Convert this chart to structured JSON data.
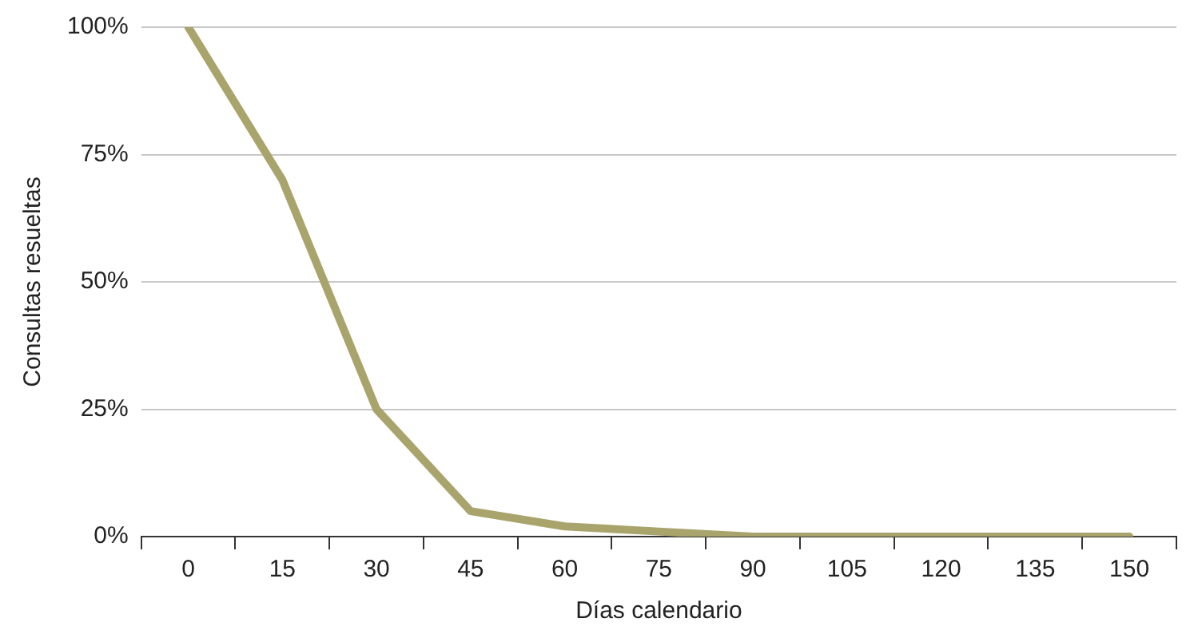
{
  "chart_data": {
    "type": "line",
    "xlabel": "Días calendario",
    "ylabel": "Consultas resueltas",
    "categories": [
      "0",
      "15",
      "30",
      "45",
      "60",
      "75",
      "90",
      "105",
      "120",
      "135",
      "150"
    ],
    "series": [
      {
        "color": "#a9a46c",
        "values": [
          100,
          70,
          25,
          5,
          2,
          1,
          0,
          0,
          0,
          0,
          0
        ]
      }
    ],
    "ylim": [
      0,
      100
    ],
    "yticks": [
      {
        "value": 0,
        "label": "0%"
      },
      {
        "value": 25,
        "label": "25%"
      },
      {
        "value": 50,
        "label": "50%"
      },
      {
        "value": 75,
        "label": "75%"
      },
      {
        "value": 100,
        "label": "100%"
      }
    ],
    "grid": "y",
    "legend": false,
    "marker": "none",
    "line_style": "solid"
  }
}
